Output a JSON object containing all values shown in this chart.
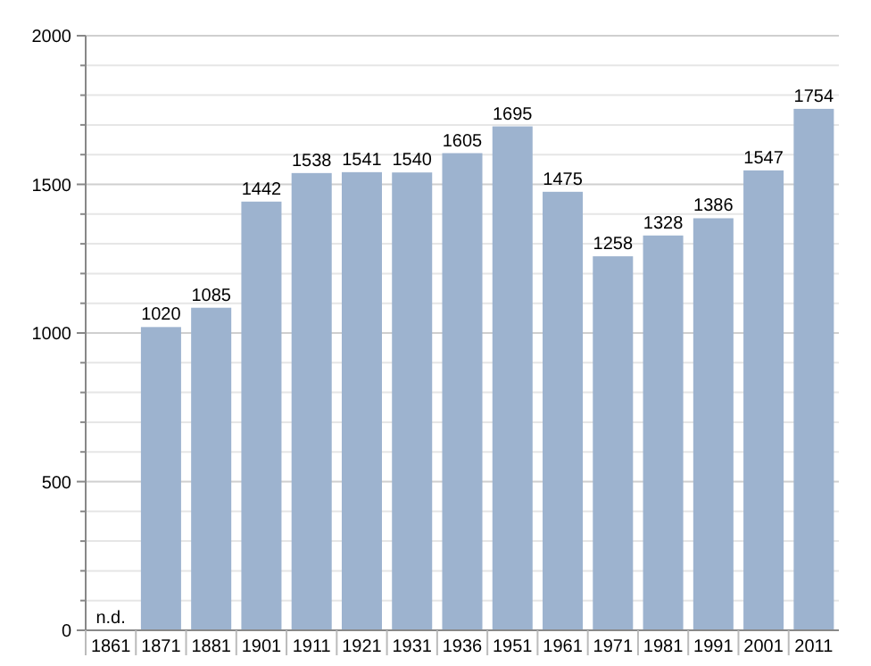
{
  "chart_data": {
    "type": "bar",
    "categories": [
      "1861",
      "1871",
      "1881",
      "1901",
      "1911",
      "1921",
      "1931",
      "1936",
      "1951",
      "1961",
      "1971",
      "1981",
      "1991",
      "2001",
      "2011"
    ],
    "values": [
      null,
      1020,
      1085,
      1442,
      1538,
      1541,
      1540,
      1605,
      1695,
      1475,
      1258,
      1328,
      1386,
      1547,
      1754
    ],
    "value_labels": [
      "n.d.",
      "1020",
      "1085",
      "1442",
      "1538",
      "1541",
      "1540",
      "1605",
      "1695",
      "1475",
      "1258",
      "1328",
      "1386",
      "1547",
      "1754"
    ],
    "color": "#9db3cf",
    "ylim": [
      0,
      2000
    ],
    "yticks": [
      0,
      {
        "value": 100,
        "label": null
      },
      {
        "value": 200,
        "label": null
      },
      {
        "value": 300,
        "label": null
      },
      {
        "value": 400,
        "label": null
      },
      500,
      {
        "value": 600,
        "label": null
      },
      {
        "value": 700,
        "label": null
      },
      {
        "value": 800,
        "label": null
      },
      {
        "value": 900,
        "label": null
      },
      1000,
      {
        "value": 1100,
        "label": null
      },
      {
        "value": 1200,
        "label": null
      },
      {
        "value": 1300,
        "label": null
      },
      {
        "value": 1400,
        "label": null
      },
      1500,
      {
        "value": 1600,
        "label": null
      },
      {
        "value": 1700,
        "label": null
      },
      {
        "value": 1800,
        "label": null
      },
      {
        "value": 1900,
        "label": null
      },
      2000
    ],
    "grid": "y"
  }
}
